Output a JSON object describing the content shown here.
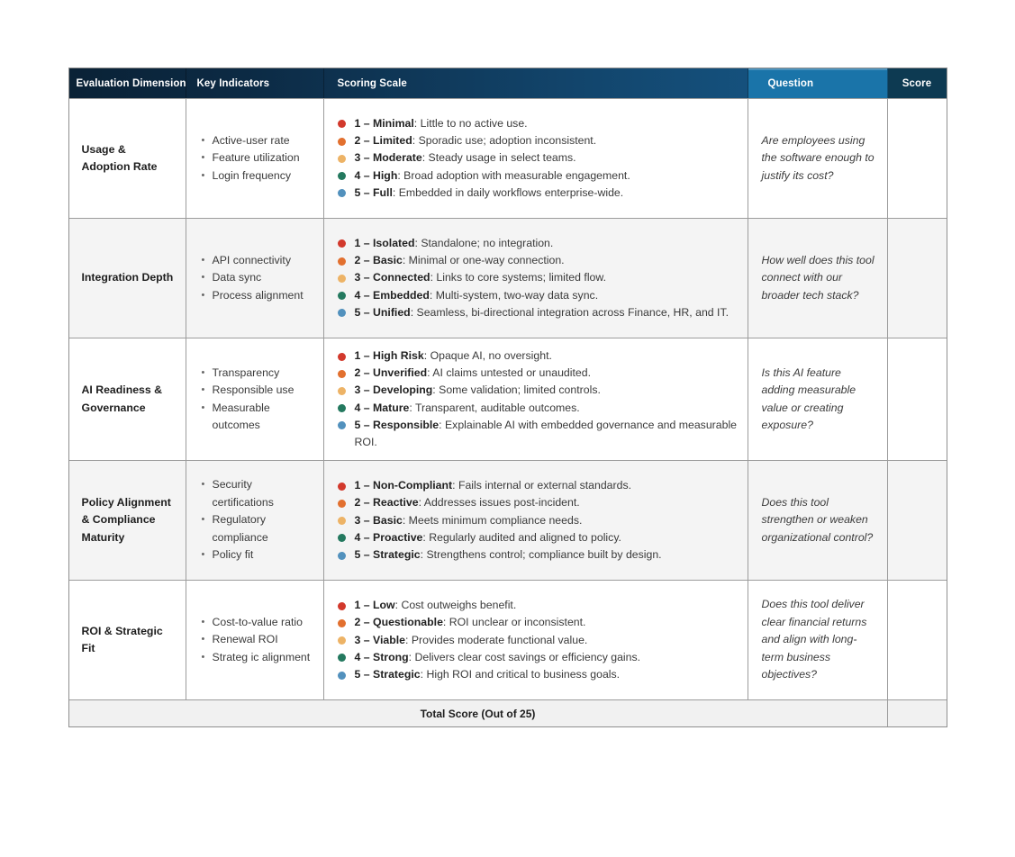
{
  "table": {
    "headers": [
      "Evaluation Dimension",
      "Key Indicators",
      "Scoring Scale",
      "Question",
      "Score"
    ],
    "footer_label": "Total Score (Out of 25)",
    "footer_score": "",
    "level_colors": [
      "#d2392c",
      "#e2702f",
      "#edb366",
      "#24795f",
      "#5291bd"
    ],
    "header_colors": {
      "dark_navy": "#0a2236",
      "mid_navy": "#15517d",
      "question_blue": "#1a74a9",
      "score_navy": "#0d3a52"
    },
    "rows": [
      {
        "dimension": "Usage & Adoption Rate",
        "indicators": [
          "Active-user rate",
          "Feature utilization",
          "Login frequency"
        ],
        "scale": [
          {
            "label": "1 – Minimal",
            "text": "Little to no active use."
          },
          {
            "label": "2 – Limited",
            "text": "Sporadic use; adoption inconsistent."
          },
          {
            "label": "3 – Moderate",
            "text": "Steady usage in select teams."
          },
          {
            "label": "4 – High",
            "text": "Broad adoption with measurable engagement."
          },
          {
            "label": "5 – Full",
            "text": "Embedded in daily workflows enterprise-wide."
          }
        ],
        "question": "Are employees using the software enough to justify its cost?",
        "score": ""
      },
      {
        "dimension": "Integration Depth",
        "indicators": [
          "API connectivity",
          "Data sync",
          "Process alignment"
        ],
        "scale": [
          {
            "label": "1 – Isolated",
            "text": "Standalone; no integration."
          },
          {
            "label": "2 – Basic",
            "text": "Minimal or one-way connection."
          },
          {
            "label": "3 – Connected",
            "text": "Links to core systems; limited flow."
          },
          {
            "label": "4 – Embedded",
            "text": "Multi-system, two-way data sync."
          },
          {
            "label": "5 – Unified",
            "text": "Seamless, bi-directional integration across Finance, HR, and IT."
          }
        ],
        "question": "How well does this tool connect with our broader tech stack?",
        "score": ""
      },
      {
        "dimension": "AI Readiness & Governance",
        "indicators": [
          "Transparency",
          "Responsible use",
          "Measurable outcomes"
        ],
        "scale": [
          {
            "label": "1 – High Risk",
            "text": "Opaque AI, no oversight."
          },
          {
            "label": "2 – Unverified",
            "text": "AI claims untested or unaudited."
          },
          {
            "label": "3 – Developing",
            "text": "Some validation; limited controls."
          },
          {
            "label": "4 – Mature",
            "text": "Transparent, auditable outcomes."
          },
          {
            "label": "5 – Responsible",
            "text": "Explainable AI with embedded governance and measurable ROI."
          }
        ],
        "question": "Is this AI feature adding measurable value or creating exposure?",
        "score": ""
      },
      {
        "dimension": "Policy Alignment & Compliance Maturity",
        "indicators": [
          "Security certifications",
          "Regulatory compliance",
          "Policy fit"
        ],
        "scale": [
          {
            "label": "1 – Non-Compliant",
            "text": "Fails internal or external standards."
          },
          {
            "label": "2 – Reactive",
            "text": "Addresses issues post-incident."
          },
          {
            "label": "3 – Basic",
            "text": "Meets minimum compliance needs."
          },
          {
            "label": "4 – Proactive",
            "text": "Regularly audited and aligned to policy."
          },
          {
            "label": "5 – Strategic",
            "text": "Strengthens control; compliance built by design."
          }
        ],
        "question": "Does this tool strengthen or weaken organizational control?",
        "score": ""
      },
      {
        "dimension": "ROI & Strategic Fit",
        "indicators": [
          "Cost-to-value ratio",
          "Renewal ROI",
          "Strateg ic alignment"
        ],
        "scale": [
          {
            "label": "1 – Low",
            "text": "Cost outweighs benefit."
          },
          {
            "label": "2 – Questionable",
            "text": "ROI unclear or inconsistent."
          },
          {
            "label": "3 – Viable",
            "text": "Provides moderate functional value."
          },
          {
            "label": "4 – Strong",
            "text": "Delivers clear cost savings or efficiency gains."
          },
          {
            "label": "5 – Strategic",
            "text": "High ROI and critical to business goals."
          }
        ],
        "question": "Does this tool deliver clear financial returns and align with long-term business objectives?",
        "score": ""
      }
    ]
  }
}
